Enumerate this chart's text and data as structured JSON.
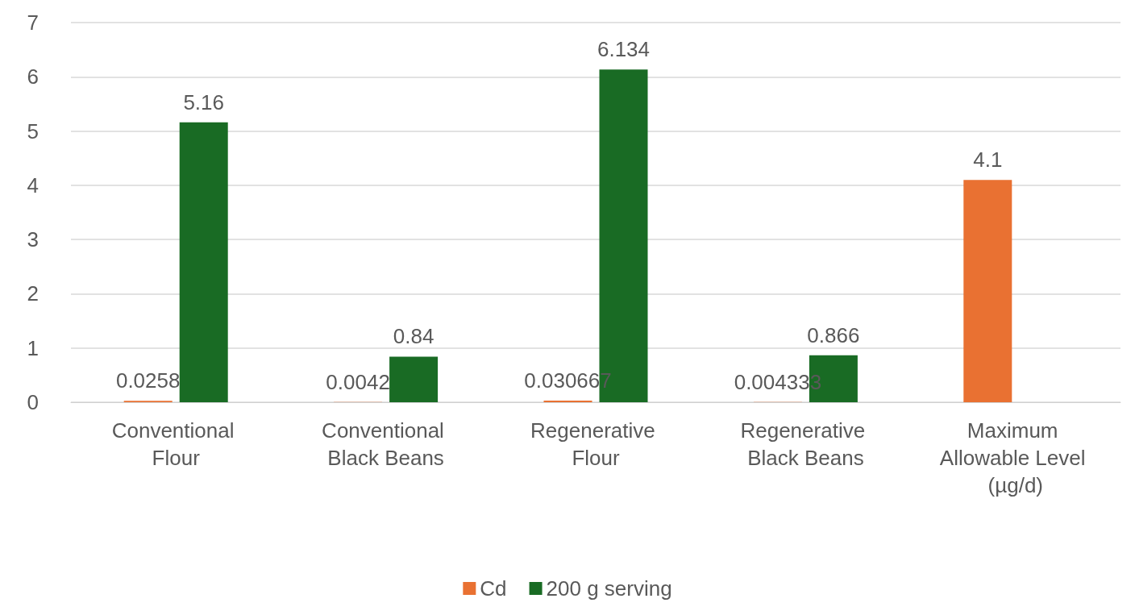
{
  "chart_data": {
    "type": "bar",
    "categories": [
      "Conventional Flour",
      "Conventional Black Beans",
      "Regenerative Flour",
      "Regenerative Black Beans",
      "Maximum Allowable Level (µg/d)"
    ],
    "series": [
      {
        "name": "Cd",
        "color": "#e97132",
        "values": [
          0.0258,
          0.0042,
          0.030667,
          0.004333,
          4.1
        ]
      },
      {
        "name": "200 g serving",
        "color": "#196b24",
        "values": [
          5.16,
          0.84,
          6.134,
          0.866,
          null
        ]
      }
    ],
    "ylim": [
      0,
      7
    ],
    "yticks": [
      0,
      1,
      2,
      3,
      4,
      5,
      6,
      7
    ],
    "grid": "y",
    "legend": "bottom",
    "data_labels": true
  }
}
